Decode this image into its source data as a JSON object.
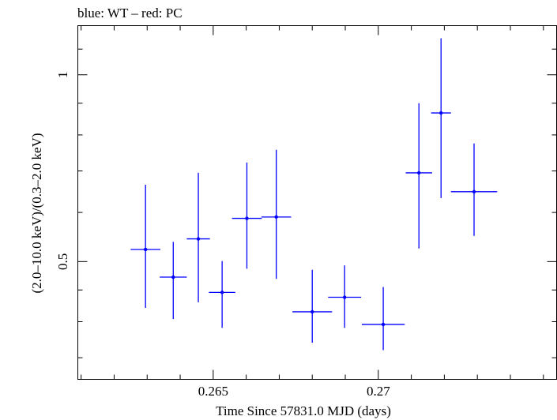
{
  "chart_data": {
    "type": "scatter",
    "title": "blue: WT – red: PC",
    "xlabel": "Time Since 57831.0 MJD (days)",
    "ylabel": "(2.0–10.0 keV)/(0.3–2.0 keV)",
    "xlim": [
      0.2609,
      0.2754
    ],
    "ylim": [
      0.323,
      1.2
    ],
    "grid": false,
    "x_ticks": [
      {
        "value": 0.265,
        "label": "0.265"
      },
      {
        "value": 0.27,
        "label": "0.27"
      }
    ],
    "x_minor_ticks": [
      0.261,
      0.262,
      0.263,
      0.264,
      0.266,
      0.267,
      0.268,
      0.269,
      0.271,
      0.272,
      0.273,
      0.274,
      0.275
    ],
    "y_ticks": [
      {
        "value": 0.5,
        "label": "0.5"
      },
      {
        "value": 1.0,
        "label": "1"
      }
    ],
    "y_minor_ticks": [
      0.35,
      0.4,
      0.45,
      0.6,
      0.7,
      0.8,
      0.9,
      1.1,
      1.2
    ],
    "series": [
      {
        "color": "#0000ff",
        "points": [
          {
            "x": 0.26295,
            "xerr": 0.00045,
            "y": 0.523,
            "ylo": 0.421,
            "yhi": 0.665
          },
          {
            "x": 0.26379,
            "xerr": 0.00041,
            "y": 0.472,
            "ylo": 0.404,
            "yhi": 0.538
          },
          {
            "x": 0.26455,
            "xerr": 0.00035,
            "y": 0.544,
            "ylo": 0.43,
            "yhi": 0.695
          },
          {
            "x": 0.26527,
            "xerr": 0.0004,
            "y": 0.446,
            "ylo": 0.391,
            "yhi": 0.501
          },
          {
            "x": 0.26602,
            "xerr": 0.00045,
            "y": 0.587,
            "ylo": 0.487,
            "yhi": 0.722
          },
          {
            "x": 0.26691,
            "xerr": 0.00045,
            "y": 0.59,
            "ylo": 0.469,
            "yhi": 0.757
          },
          {
            "x": 0.268,
            "xerr": 0.0006,
            "y": 0.415,
            "ylo": 0.37,
            "yhi": 0.485
          },
          {
            "x": 0.26898,
            "xerr": 0.0005,
            "y": 0.438,
            "ylo": 0.391,
            "yhi": 0.493
          },
          {
            "x": 0.27015,
            "xerr": 0.00065,
            "y": 0.396,
            "ylo": 0.36,
            "yhi": 0.455
          },
          {
            "x": 0.27123,
            "xerr": 0.0004,
            "y": 0.695,
            "ylo": 0.525,
            "yhi": 0.9
          },
          {
            "x": 0.2719,
            "xerr": 0.0003,
            "y": 0.868,
            "ylo": 0.633,
            "yhi": 1.145
          },
          {
            "x": 0.2729,
            "xerr": 0.0007,
            "y": 0.648,
            "ylo": 0.55,
            "yhi": 0.775
          }
        ]
      }
    ]
  }
}
